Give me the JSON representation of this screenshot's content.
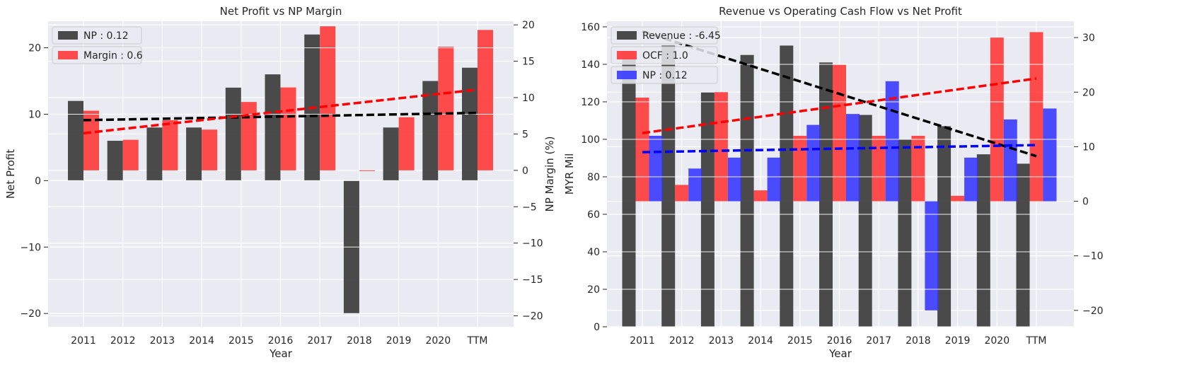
{
  "chart_data": [
    {
      "type": "bar",
      "title": "Net Profit vs NP Margin",
      "xlabel": "Year",
      "ylabel": "Net Profit",
      "y2label": "NP Margin (%)",
      "categories": [
        "2011",
        "2012",
        "2013",
        "2014",
        "2015",
        "2016",
        "2017",
        "2018",
        "2019",
        "2020",
        "TTM"
      ],
      "ylim": [
        -22,
        24
      ],
      "y2lim": [
        -21.5,
        20.5
      ],
      "yticks": [
        -20,
        -10,
        0,
        10,
        20
      ],
      "y2ticks": [
        -20,
        -15,
        -10,
        -5,
        0,
        5,
        10,
        15,
        20
      ],
      "legend_position": "top-left",
      "series": [
        {
          "name": "NP : 0.12",
          "axis": "left",
          "color": "#333333",
          "values": [
            12,
            6,
            8,
            8,
            14,
            16,
            22,
            -20,
            8,
            15,
            17
          ]
        },
        {
          "name": "Margin : 0.6",
          "axis": "right",
          "color": "#ff3333",
          "values": [
            8.2,
            4.2,
            6.9,
            5.6,
            9.4,
            11.4,
            19.8,
            0,
            7.3,
            17.0,
            19.3
          ]
        }
      ],
      "trendlines": [
        {
          "axis": "left",
          "color": "#000000",
          "from": [
            0,
            9.1
          ],
          "to": [
            10,
            10.2
          ]
        },
        {
          "axis": "right",
          "color": "#ff0000",
          "from": [
            0,
            5.1
          ],
          "to": [
            10,
            11.1
          ]
        }
      ]
    },
    {
      "type": "bar",
      "title": "Revenue vs Operating Cash Flow vs Net Profit",
      "xlabel": "Year",
      "ylabel": "MYR Mil",
      "categories": [
        "2011",
        "2012",
        "2013",
        "2014",
        "2015",
        "2016",
        "2017",
        "2018",
        "2019",
        "2020",
        "TTM"
      ],
      "ylim": [
        0,
        163
      ],
      "y2lim": [
        -23,
        33
      ],
      "yticks": [
        0,
        20,
        40,
        60,
        80,
        100,
        120,
        140,
        160
      ],
      "y2ticks": [
        -20,
        -10,
        0,
        10,
        20,
        30
      ],
      "legend_position": "top-left",
      "series": [
        {
          "name": "Revenue : -6.45",
          "axis": "left",
          "color": "#333333",
          "values": [
            147,
            150,
            125,
            145,
            150,
            141,
            113,
            100,
            107,
            92,
            87
          ]
        },
        {
          "name": "OCF : 1.0",
          "axis": "right",
          "color": "#ff3333",
          "values": [
            19,
            3,
            20,
            2,
            12,
            25,
            12,
            12,
            1,
            30,
            31
          ]
        },
        {
          "name": "NP : 0.12",
          "axis": "right",
          "color": "#3333ff",
          "values": [
            12,
            6,
            8,
            8,
            14,
            16,
            22,
            -20,
            8,
            15,
            17
          ]
        }
      ],
      "trendlines": [
        {
          "axis": "left",
          "color": "#000000",
          "from": [
            0,
            157.5
          ],
          "to": [
            10,
            91
          ]
        },
        {
          "axis": "right",
          "color": "#ff0000",
          "from": [
            0,
            12.5
          ],
          "to": [
            10,
            22.5
          ]
        },
        {
          "axis": "right",
          "color": "#0000ff",
          "from": [
            0,
            9
          ],
          "to": [
            10,
            10.3
          ]
        }
      ]
    }
  ]
}
